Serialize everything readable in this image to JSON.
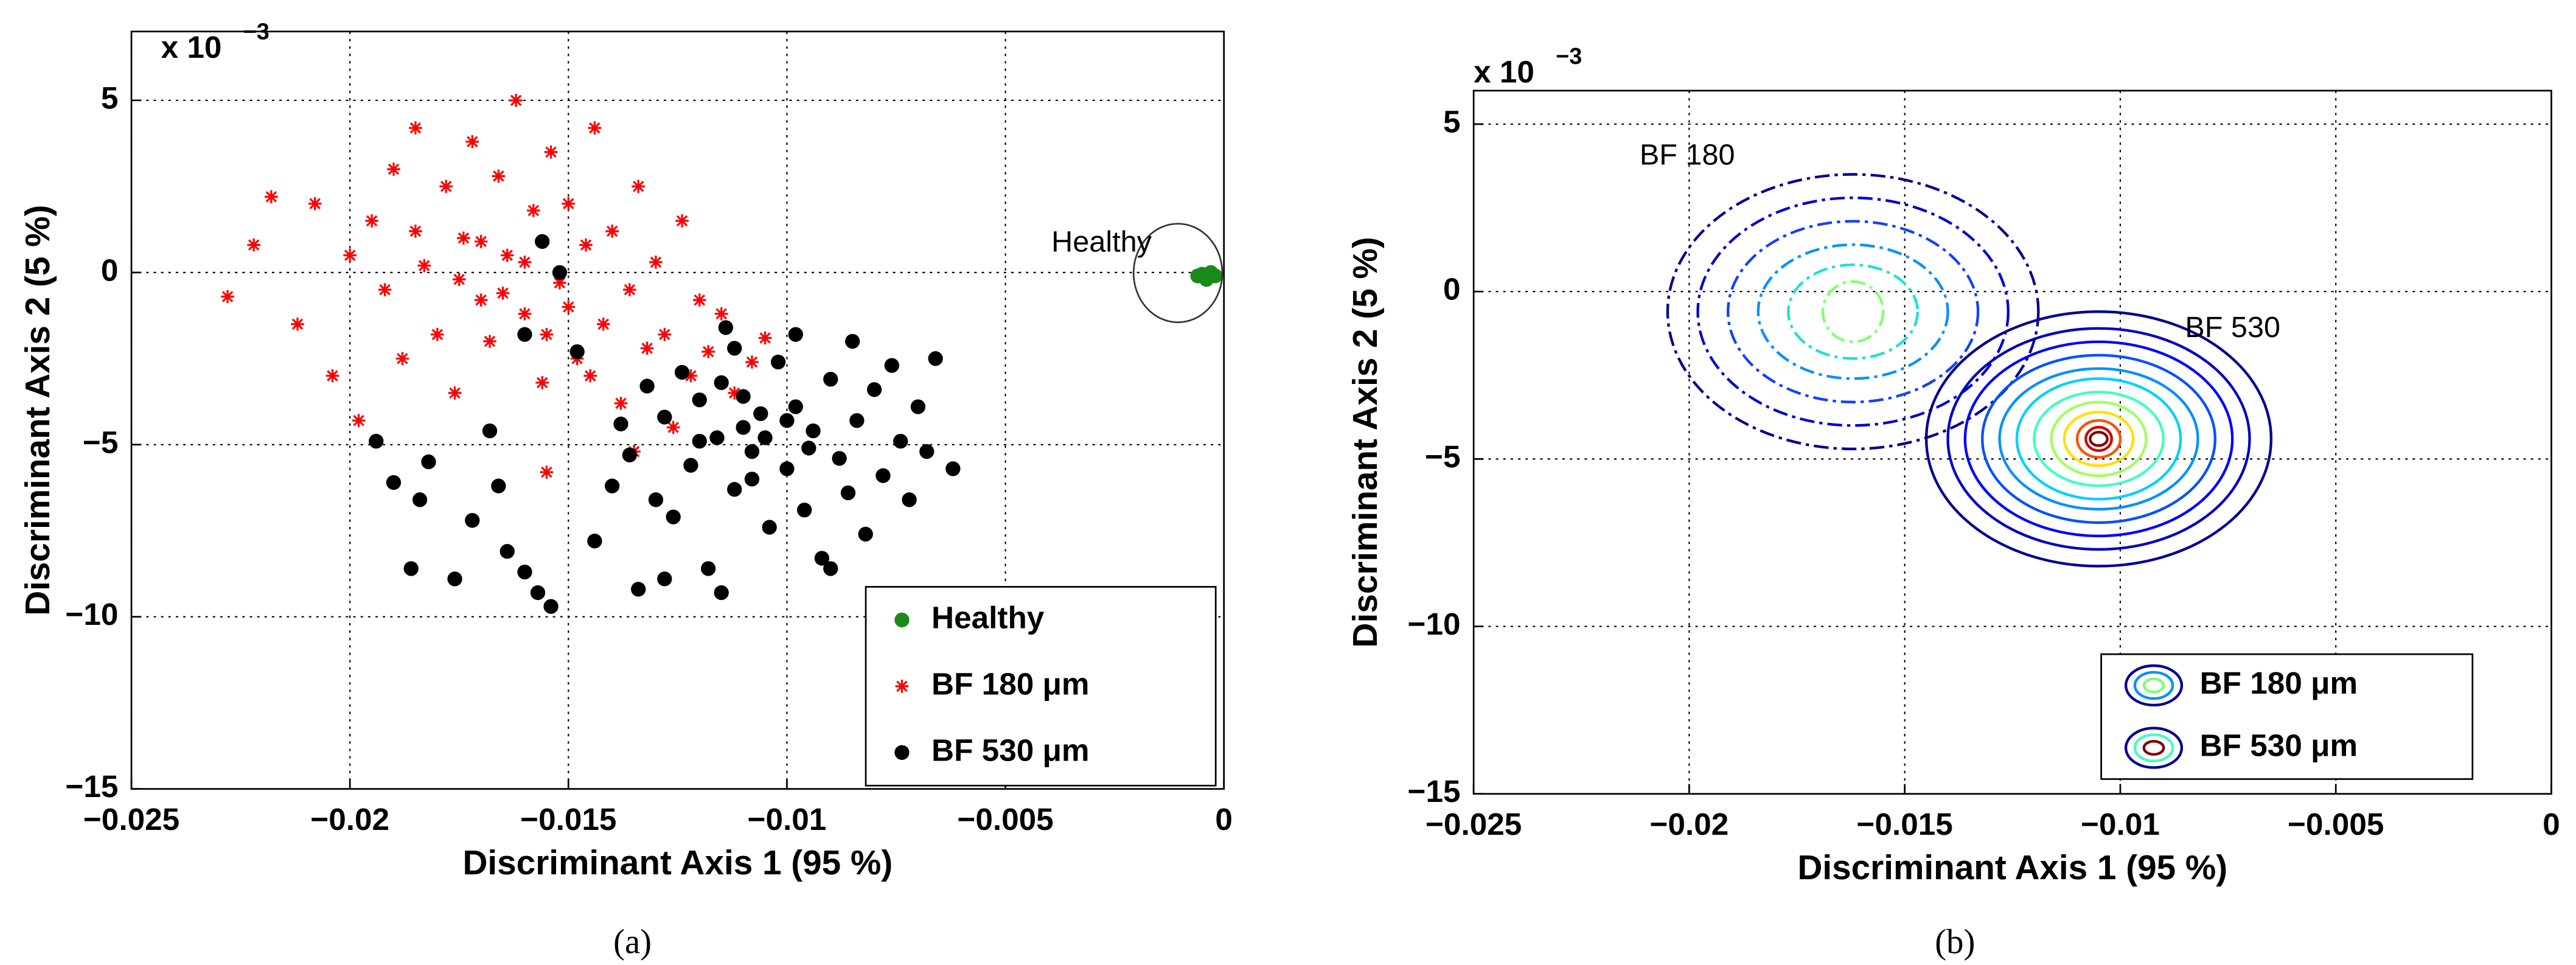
{
  "chart_data": [
    {
      "type": "scatter",
      "x_label": "Discriminant Axis 1 (95 %)",
      "y_label": "Discriminant Axis 2 (5 %)",
      "caption": "(a)",
      "multiplier": {
        "base": "x 10",
        "exponent": "−3"
      },
      "xlim": [
        -0.025,
        0
      ],
      "ylim": [
        -15,
        7
      ],
      "xticks": [
        {
          "value": -0.025,
          "label": "−0.025"
        },
        {
          "value": -0.02,
          "label": "−0.02"
        },
        {
          "value": -0.015,
          "label": "−0.015"
        },
        {
          "value": -0.01,
          "label": "−0.01"
        },
        {
          "value": -0.005,
          "label": "−0.005"
        },
        0
      ],
      "yticks": [
        {
          "value": -15,
          "label": "−15"
        },
        {
          "value": -10,
          "label": "−10"
        },
        {
          "value": -5,
          "label": "−5"
        },
        0,
        5
      ],
      "grid": true,
      "legend": "lower right",
      "annotations": [
        {
          "text": "Healthy"
        }
      ],
      "series": [
        {
          "name": "Healthy",
          "color": "#1a8a1a",
          "marker": "circle",
          "x": [
            -0.0006,
            -0.0004,
            -0.0003,
            -0.0005,
            -0.0002
          ],
          "values": [
            -0.1,
            -0.2,
            0.0,
            -0.05,
            -0.1
          ]
        },
        {
          "name": "BF 180 μm",
          "color": "#ff0000",
          "marker": "star",
          "x": [
            -0.0228,
            -0.0222,
            -0.0218,
            -0.0212,
            -0.0208,
            -0.0204,
            -0.02,
            -0.0198,
            -0.0195,
            -0.0192,
            -0.019,
            -0.0188,
            -0.0185,
            -0.0183,
            -0.018,
            -0.0178,
            -0.0176,
            -0.0174,
            -0.0172,
            -0.017,
            -0.0168,
            -0.0166,
            -0.0164,
            -0.0162,
            -0.016,
            -0.0158,
            -0.0156,
            -0.0154,
            -0.0152,
            -0.015,
            -0.0148,
            -0.0146,
            -0.0144,
            -0.0142,
            -0.014,
            -0.0138,
            -0.0136,
            -0.0134,
            -0.0132,
            -0.013,
            -0.0128,
            -0.0126,
            -0.0124,
            -0.0122,
            -0.012,
            -0.0118,
            -0.0115,
            -0.0112,
            -0.0108,
            -0.0105,
            -0.017,
            -0.0175,
            -0.0165,
            -0.016,
            -0.0155,
            -0.015,
            -0.0185,
            -0.0145,
            -0.0135,
            -0.0155
          ],
          "values": [
            -0.7,
            0.8,
            2.2,
            -1.5,
            2.0,
            -3.0,
            0.5,
            -4.3,
            1.5,
            -0.5,
            3.0,
            -2.5,
            4.2,
            0.2,
            -1.8,
            2.5,
            -3.5,
            1.0,
            3.8,
            -0.8,
            -2.0,
            2.8,
            0.5,
            5.0,
            -1.2,
            1.8,
            -3.2,
            3.5,
            -0.3,
            2.0,
            -2.5,
            0.8,
            4.2,
            -1.5,
            1.2,
            -3.8,
            -0.5,
            2.5,
            -2.2,
            0.3,
            -1.8,
            -4.5,
            1.5,
            -3.0,
            -0.8,
            -2.3,
            -1.2,
            -3.5,
            -2.6,
            -1.9,
            0.9,
            -0.2,
            -0.6,
            0.3,
            -1.8,
            -1.0,
            1.2,
            -3.0,
            -5.2,
            -5.8
          ]
        },
        {
          "name": "BF 530 μm",
          "color": "#000000",
          "marker": "circle",
          "x": [
            -0.0194,
            -0.019,
            -0.0186,
            -0.0184,
            -0.0182,
            -0.0176,
            -0.0172,
            -0.0168,
            -0.0166,
            -0.0164,
            -0.016,
            -0.0157,
            -0.0154,
            -0.0156,
            -0.0152,
            -0.016,
            -0.0148,
            -0.0144,
            -0.014,
            -0.0138,
            -0.0136,
            -0.0134,
            -0.0132,
            -0.013,
            -0.0128,
            -0.0126,
            -0.0124,
            -0.0122,
            -0.012,
            -0.0118,
            -0.0116,
            -0.0114,
            -0.0112,
            -0.011,
            -0.0108,
            -0.0106,
            -0.0104,
            -0.0102,
            -0.01,
            -0.0098,
            -0.0096,
            -0.0094,
            -0.0092,
            -0.009,
            -0.0088,
            -0.0086,
            -0.0084,
            -0.0082,
            -0.008,
            -0.0078,
            -0.0076,
            -0.0074,
            -0.0072,
            -0.007,
            -0.0068,
            -0.0066,
            -0.0062,
            -0.011,
            -0.0105,
            -0.0115,
            -0.01,
            -0.0095,
            -0.012,
            -0.0108,
            -0.0112,
            -0.0098,
            -0.0085,
            -0.0128,
            -0.0115,
            -0.009
          ],
          "values": [
            -4.9,
            -6.1,
            -8.6,
            -6.6,
            -5.5,
            -8.9,
            -7.2,
            -4.6,
            -6.2,
            -8.1,
            -8.7,
            -9.3,
            -9.7,
            0.9,
            0.0,
            -1.8,
            -2.3,
            -7.8,
            -6.2,
            -4.4,
            -5.3,
            -9.2,
            -3.3,
            -6.6,
            -4.2,
            -7.1,
            -2.9,
            -5.6,
            -3.7,
            -8.6,
            -4.8,
            -1.6,
            -6.3,
            -3.6,
            -5.2,
            -4.1,
            -7.4,
            -2.6,
            -5.7,
            -3.9,
            -6.9,
            -4.6,
            -8.3,
            -3.1,
            -5.4,
            -6.4,
            -4.3,
            -7.6,
            -3.4,
            -5.9,
            -2.7,
            -4.9,
            -6.6,
            -3.9,
            -5.2,
            -2.5,
            -5.7,
            -4.5,
            -4.8,
            -3.2,
            -4.3,
            -5.1,
            -4.9,
            -6.0,
            -2.2,
            -1.8,
            -2.0,
            -8.9,
            -9.3,
            -8.6
          ]
        }
      ]
    },
    {
      "type": "contour",
      "x_label": "Discriminant Axis 1 (95 %)",
      "y_label": "Discriminant Axis 2 (5 %)",
      "caption": "(b)",
      "multiplier": {
        "base": "x 10",
        "exponent": "−3"
      },
      "xlim": [
        -0.025,
        0
      ],
      "ylim": [
        -15,
        6
      ],
      "xticks": [
        {
          "value": -0.025,
          "label": "−0.025"
        },
        {
          "value": -0.02,
          "label": "−0.02"
        },
        {
          "value": -0.015,
          "label": "−0.015"
        },
        {
          "value": -0.01,
          "label": "−0.01"
        },
        {
          "value": -0.005,
          "label": "−0.005"
        },
        0
      ],
      "yticks": [
        {
          "value": -15,
          "label": "−15"
        },
        {
          "value": -10,
          "label": "−10"
        },
        {
          "value": -5,
          "label": "−5"
        },
        0,
        5
      ],
      "grid": true,
      "legend": "lower right",
      "annotations": [
        {
          "text": "BF 180"
        },
        {
          "text": "BF 530"
        }
      ],
      "series": [
        {
          "name": "BF 180 μm",
          "dashed": true,
          "cx": -0.0162,
          "cy": -0.6,
          "contours": [
            {
              "color": "#00008f",
              "rx": 0.0043,
              "ry": 4.1
            },
            {
              "color": "#0000d0",
              "rx": 0.0036,
              "ry": 3.4
            },
            {
              "color": "#1040ff",
              "rx": 0.0029,
              "ry": 2.7
            },
            {
              "color": "#0090ff",
              "rx": 0.0022,
              "ry": 2.0
            },
            {
              "color": "#20e0d0",
              "rx": 0.0015,
              "ry": 1.4
            },
            {
              "color": "#80ff70",
              "rx": 0.0007,
              "ry": 0.9
            }
          ]
        },
        {
          "name": "BF 530 μm",
          "dashed": false,
          "cx": -0.0105,
          "cy": -4.4,
          "contours": [
            {
              "color": "#00008f",
              "rx": 0.004,
              "ry": 3.8
            },
            {
              "color": "#0000c0",
              "rx": 0.0035,
              "ry": 3.3
            },
            {
              "color": "#0000ff",
              "rx": 0.0031,
              "ry": 2.9
            },
            {
              "color": "#0050ff",
              "rx": 0.0027,
              "ry": 2.5
            },
            {
              "color": "#0090ff",
              "rx": 0.0023,
              "ry": 2.1
            },
            {
              "color": "#00d0ff",
              "rx": 0.0019,
              "ry": 1.8
            },
            {
              "color": "#40ffc0",
              "rx": 0.0015,
              "ry": 1.4
            },
            {
              "color": "#a0ff60",
              "rx": 0.0011,
              "ry": 1.1
            },
            {
              "color": "#ffe000",
              "rx": 0.0008,
              "ry": 0.8
            },
            {
              "color": "#ff5000",
              "rx": 0.0005,
              "ry": 0.55
            },
            {
              "color": "#d00000",
              "rx": 0.0003,
              "ry": 0.35
            },
            {
              "color": "#800000",
              "rx": 0.0002,
              "ry": 0.2
            }
          ]
        }
      ]
    }
  ]
}
